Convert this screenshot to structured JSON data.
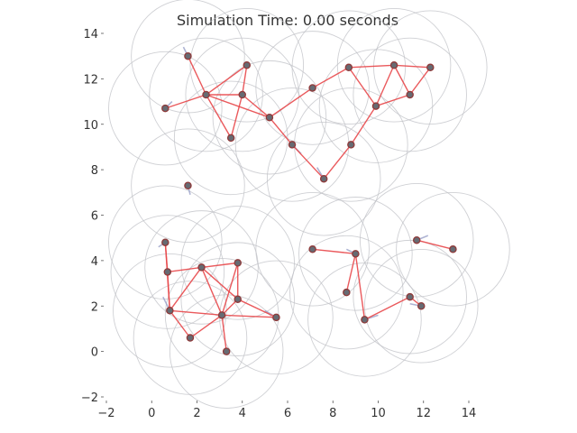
{
  "chart_data": {
    "type": "network",
    "title": "Simulation Time: 0.00 seconds",
    "xlim": [
      -2,
      14
    ],
    "ylim": [
      -2,
      14
    ],
    "xticks": [
      "−2",
      "0",
      "2",
      "4",
      "6",
      "8",
      "10",
      "12",
      "14"
    ],
    "yticks": [
      "−2",
      "0",
      "2",
      "4",
      "6",
      "8",
      "10",
      "12",
      "14"
    ],
    "grid": false,
    "communication_radius": 2.5,
    "colors": {
      "edge": "#e8474a",
      "node_fill": "#666b73",
      "node_stroke": "#8f3a3a",
      "range_circle": "#bfc0c6",
      "velocity": "#9aa0c8"
    },
    "nodes": [
      {
        "id": 0,
        "x": 1.6,
        "y": 13.0
      },
      {
        "id": 1,
        "x": 4.2,
        "y": 12.6
      },
      {
        "id": 2,
        "x": 2.4,
        "y": 11.3
      },
      {
        "id": 3,
        "x": 4.0,
        "y": 11.3
      },
      {
        "id": 4,
        "x": 0.6,
        "y": 10.7
      },
      {
        "id": 5,
        "x": 5.2,
        "y": 10.3
      },
      {
        "id": 6,
        "x": 3.5,
        "y": 9.4
      },
      {
        "id": 7,
        "x": 6.2,
        "y": 9.1
      },
      {
        "id": 8,
        "x": 7.1,
        "y": 11.6
      },
      {
        "id": 9,
        "x": 8.7,
        "y": 12.5
      },
      {
        "id": 10,
        "x": 10.7,
        "y": 12.6
      },
      {
        "id": 11,
        "x": 12.3,
        "y": 12.5
      },
      {
        "id": 12,
        "x": 11.4,
        "y": 11.3
      },
      {
        "id": 13,
        "x": 9.9,
        "y": 10.8
      },
      {
        "id": 14,
        "x": 8.8,
        "y": 9.1
      },
      {
        "id": 15,
        "x": 7.6,
        "y": 7.6
      },
      {
        "id": 16,
        "x": 1.6,
        "y": 7.3
      },
      {
        "id": 17,
        "x": 0.6,
        "y": 4.8
      },
      {
        "id": 18,
        "x": 0.7,
        "y": 3.5
      },
      {
        "id": 19,
        "x": 2.2,
        "y": 3.7
      },
      {
        "id": 20,
        "x": 3.8,
        "y": 3.9
      },
      {
        "id": 21,
        "x": 3.8,
        "y": 2.3
      },
      {
        "id": 22,
        "x": 0.8,
        "y": 1.8
      },
      {
        "id": 23,
        "x": 3.1,
        "y": 1.6
      },
      {
        "id": 24,
        "x": 5.5,
        "y": 1.5
      },
      {
        "id": 25,
        "x": 1.7,
        "y": 0.6
      },
      {
        "id": 26,
        "x": 3.3,
        "y": 0.0
      },
      {
        "id": 27,
        "x": 7.1,
        "y": 4.5
      },
      {
        "id": 28,
        "x": 9.0,
        "y": 4.3
      },
      {
        "id": 29,
        "x": 8.6,
        "y": 2.6
      },
      {
        "id": 30,
        "x": 9.4,
        "y": 1.4
      },
      {
        "id": 31,
        "x": 11.7,
        "y": 4.9
      },
      {
        "id": 32,
        "x": 13.3,
        "y": 4.5
      },
      {
        "id": 33,
        "x": 11.4,
        "y": 2.4
      },
      {
        "id": 34,
        "x": 11.9,
        "y": 2.0
      }
    ],
    "edges": [
      [
        0,
        2
      ],
      [
        1,
        2
      ],
      [
        1,
        3
      ],
      [
        2,
        3
      ],
      [
        2,
        4
      ],
      [
        2,
        6
      ],
      [
        2,
        5
      ],
      [
        3,
        5
      ],
      [
        3,
        6
      ],
      [
        5,
        7
      ],
      [
        5,
        8
      ],
      [
        8,
        9
      ],
      [
        9,
        10
      ],
      [
        10,
        11
      ],
      [
        10,
        12
      ],
      [
        10,
        13
      ],
      [
        9,
        13
      ],
      [
        12,
        11
      ],
      [
        12,
        13
      ],
      [
        13,
        14
      ],
      [
        14,
        15
      ],
      [
        7,
        15
      ],
      [
        17,
        18
      ],
      [
        17,
        22
      ],
      [
        18,
        19
      ],
      [
        19,
        20
      ],
      [
        19,
        21
      ],
      [
        19,
        22
      ],
      [
        19,
        23
      ],
      [
        20,
        21
      ],
      [
        20,
        23
      ],
      [
        21,
        23
      ],
      [
        21,
        24
      ],
      [
        22,
        23
      ],
      [
        22,
        25
      ],
      [
        23,
        24
      ],
      [
        23,
        26
      ],
      [
        25,
        23
      ],
      [
        18,
        22
      ],
      [
        27,
        28
      ],
      [
        28,
        29
      ],
      [
        28,
        30
      ],
      [
        31,
        32
      ],
      [
        33,
        34
      ],
      [
        30,
        33
      ]
    ],
    "velocities": [
      {
        "node": 0,
        "dx": -0.2,
        "dy": 0.4
      },
      {
        "node": 4,
        "dx": 0.3,
        "dy": 0.3
      },
      {
        "node": 7,
        "dx": 0.4,
        "dy": -0.4
      },
      {
        "node": 15,
        "dx": -0.3,
        "dy": 0.5
      },
      {
        "node": 16,
        "dx": 0.1,
        "dy": -0.4
      },
      {
        "node": 17,
        "dx": -0.3,
        "dy": -0.2
      },
      {
        "node": 22,
        "dx": -0.3,
        "dy": 0.6
      },
      {
        "node": 24,
        "dx": -0.5,
        "dy": 0.3
      },
      {
        "node": 28,
        "dx": -0.4,
        "dy": 0.2
      },
      {
        "node": 30,
        "dx": 0.6,
        "dy": 0.2
      },
      {
        "node": 31,
        "dx": 0.5,
        "dy": 0.2
      },
      {
        "node": 34,
        "dx": -0.5,
        "dy": 0.1
      }
    ]
  }
}
